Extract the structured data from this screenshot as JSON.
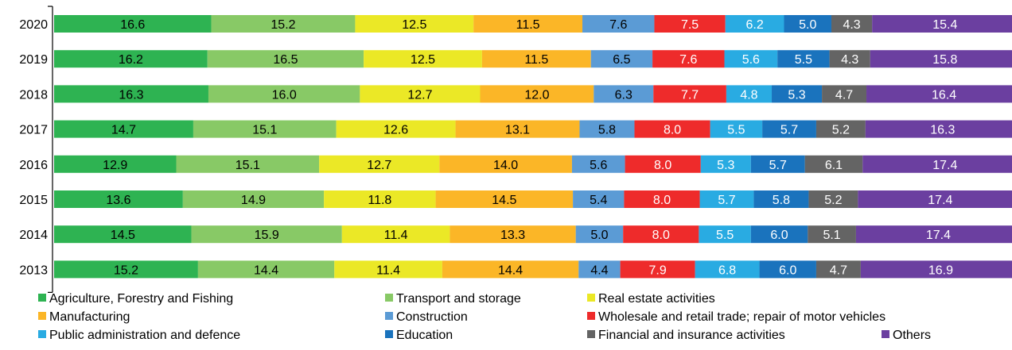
{
  "chart_data": {
    "type": "bar",
    "orientation": "horizontal",
    "stacked": true,
    "title": "",
    "xlabel": "",
    "ylabel": "",
    "categories": [
      "2020",
      "2019",
      "2018",
      "2017",
      "2016",
      "2015",
      "2014",
      "2013"
    ],
    "series": [
      {
        "name": "Agriculture, Forestry and Fishing",
        "color": "#2eb352",
        "label_color": "#000000",
        "values": [
          16.6,
          16.2,
          16.3,
          14.7,
          12.9,
          13.6,
          14.5,
          15.2
        ]
      },
      {
        "name": "Transport and storage",
        "color": "#88c966",
        "label_color": "#000000",
        "values": [
          15.2,
          16.5,
          16.0,
          15.1,
          15.1,
          14.9,
          15.9,
          14.4
        ]
      },
      {
        "name": "Real estate activities",
        "color": "#ebe826",
        "label_color": "#000000",
        "values": [
          12.5,
          12.5,
          12.7,
          12.6,
          12.7,
          11.8,
          11.4,
          11.4
        ]
      },
      {
        "name": "Manufacturing",
        "color": "#fbb627",
        "label_color": "#000000",
        "values": [
          11.5,
          11.5,
          12.0,
          13.1,
          14.0,
          14.5,
          13.3,
          14.4
        ]
      },
      {
        "name": "Construction",
        "color": "#5b9bd5",
        "label_color": "#000000",
        "values": [
          7.6,
          6.5,
          6.3,
          5.8,
          5.6,
          5.4,
          5.0,
          4.4
        ]
      },
      {
        "name": "Wholesale and retail trade; repair of motor vehicles",
        "color": "#ee2b2b",
        "label_color": "#ffffff",
        "values": [
          7.5,
          7.6,
          7.7,
          8.0,
          8.0,
          8.0,
          8.0,
          7.9
        ]
      },
      {
        "name": "Public administration and defence",
        "color": "#29abe2",
        "label_color": "#ffffff",
        "values": [
          6.2,
          5.6,
          4.8,
          5.5,
          5.3,
          5.7,
          5.5,
          6.8
        ]
      },
      {
        "name": "Education",
        "color": "#1a73bd",
        "label_color": "#ffffff",
        "values": [
          5.0,
          5.5,
          5.3,
          5.7,
          5.7,
          5.8,
          6.0,
          6.0
        ]
      },
      {
        "name": "Financial and insurance activities",
        "color": "#646464",
        "label_color": "#ffffff",
        "values": [
          4.3,
          4.3,
          4.7,
          5.2,
          6.1,
          5.2,
          5.1,
          4.7
        ]
      },
      {
        "name": "Others",
        "color": "#6b3fa0",
        "label_color": "#ffffff",
        "values": [
          15.4,
          15.8,
          16.4,
          16.3,
          17.4,
          17.4,
          17.4,
          16.9
        ]
      }
    ],
    "value_labels": true,
    "grid": false,
    "legend_position": "bottom"
  }
}
